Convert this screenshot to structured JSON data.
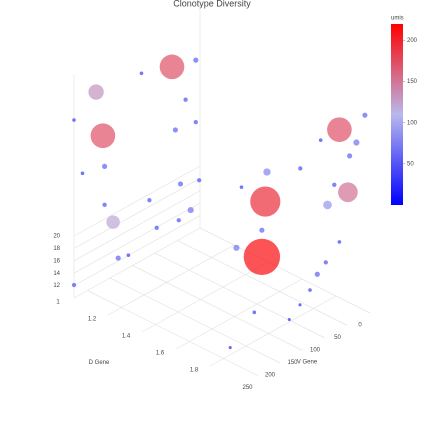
{
  "chart_data": {
    "type": "scatter3d",
    "title": "Clonotype Diversity",
    "x_label": "V Gene",
    "y_label": "D Gene",
    "xlim": [
      0,
      280
    ],
    "ylim": [
      1,
      2
    ],
    "zlim": [
      10,
      46
    ],
    "xticks": [
      0,
      50,
      100,
      150,
      200,
      250
    ],
    "yticks": [
      1,
      1.2,
      1.4,
      1.6,
      1.8
    ],
    "zticks": [
      12,
      14,
      16,
      18,
      20
    ],
    "grid": true,
    "x": [
      100,
      100,
      100,
      100,
      100,
      100,
      100,
      100,
      100,
      100,
      120,
      130,
      280,
      280,
      280,
      280,
      280,
      280,
      280,
      280,
      280,
      280,
      40,
      40,
      40,
      40,
      40,
      40,
      0,
      0,
      0,
      0,
      0,
      0,
      0,
      0,
      0,
      0,
      0,
      0,
      20,
      80,
      100,
      140,
      220
    ],
    "y": [
      1.1,
      1.24,
      1.12,
      1.18,
      1.24,
      1.15,
      1.21,
      1.14,
      1.26,
      1.01,
      1.02,
      1.0,
      1.13,
      1.17,
      1.23,
      1.26,
      1.0,
      1.05,
      1.18,
      1.18,
      1.0,
      1.32,
      1.5,
      1.49,
      1.47,
      1.47,
      1.32,
      1.35,
      1.82,
      1.87,
      1.75,
      1.92,
      1.88,
      1.97,
      1.71,
      1.79,
      1.59,
      1.82,
      1.74,
      1.69,
      1.7,
      1.8,
      1.79,
      1.69,
      1.76
    ],
    "z": [
      41.4,
      44.4,
      31.5,
      37.2,
      34.4,
      23.2,
      19.8,
      17.2,
      25.3,
      14.2,
      19.6,
      40.2,
      45,
      38.5,
      25.4,
      20,
      12.1,
      30.8,
      33.7,
      27.5,
      38.7,
      21.3,
      27.5,
      22.6,
      13.4,
      17.7,
      12.8,
      23,
      37.1,
      27.7,
      24,
      36.4,
      33.7,
      41.5,
      33.9,
      27.8,
      27.7,
      19,
      14.6,
      12,
      10.4,
      11.8,
      10.1,
      11.5,
      10
    ],
    "umis": [
      170,
      60,
      60,
      50,
      50,
      60,
      70,
      50,
      50,
      50,
      50,
      40,
      130,
      170,
      120,
      60,
      50,
      40,
      60,
      50,
      40,
      40,
      80,
      190,
      210,
      60,
      70,
      40,
      170,
      150,
      90,
      70,
      60,
      60,
      40,
      50,
      50,
      40,
      50,
      60,
      40,
      30,
      30,
      40,
      30
    ],
    "colorbar": {
      "title": "umis",
      "lim": [
        0,
        220
      ],
      "ticks": [
        50,
        100,
        150,
        200
      ],
      "colors": [
        "#0000ff",
        "#b8b8ec",
        "#ff0000"
      ]
    }
  }
}
